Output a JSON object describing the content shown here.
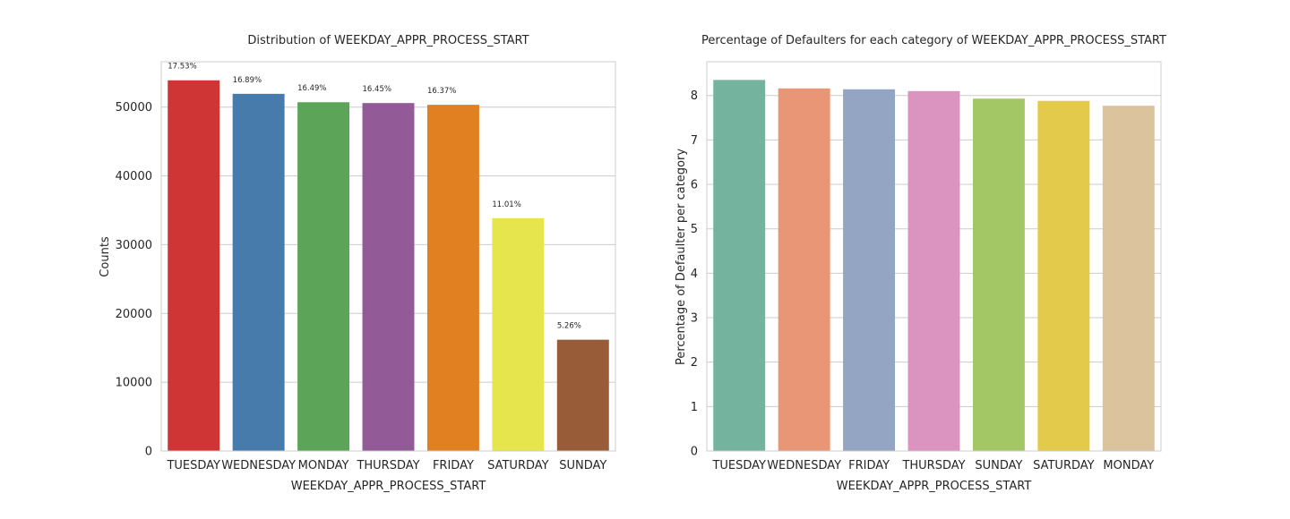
{
  "chart_data": [
    {
      "type": "bar",
      "title": "Distribution of WEEKDAY_APPR_PROCESS_START",
      "xlabel": "WEEKDAY_APPR_PROCESS_START",
      "ylabel": "Counts",
      "categories": [
        "TUESDAY",
        "WEDNESDAY",
        "MONDAY",
        "THURSDAY",
        "FRIDAY",
        "SATURDAY",
        "SUNDAY"
      ],
      "values": [
        53901,
        51934,
        50714,
        50591,
        50338,
        33852,
        16181
      ],
      "data_labels": [
        "17.53%",
        "16.89%",
        "16.49%",
        "16.45%",
        "16.37%",
        "11.01%",
        "5.26%"
      ],
      "colors": [
        "#d03536",
        "#477bab",
        "#5ca558",
        "#925b98",
        "#e08020",
        "#e6e54d",
        "#985c38"
      ],
      "ylim": [
        0,
        56600
      ],
      "yticks": [
        0,
        10000,
        20000,
        30000,
        40000,
        50000
      ],
      "grid": "horizontal"
    },
    {
      "type": "bar",
      "title": "Percentage of Defaulters for each category of WEEKDAY_APPR_PROCESS_START",
      "xlabel": "WEEKDAY_APPR_PROCESS_START",
      "ylabel": "Percentage of Defaulter per category",
      "categories": [
        "TUESDAY",
        "WEDNESDAY",
        "FRIDAY",
        "THURSDAY",
        "SUNDAY",
        "SATURDAY",
        "MONDAY"
      ],
      "values": [
        8.35,
        8.16,
        8.14,
        8.1,
        7.93,
        7.88,
        7.77
      ],
      "colors": [
        "#74b49f",
        "#e89676",
        "#94a5c3",
        "#da94bf",
        "#a3c765",
        "#e4ca4a",
        "#dac39d"
      ],
      "ylim": [
        0,
        8.76
      ],
      "yticks": [
        0,
        1,
        2,
        3,
        4,
        5,
        6,
        7,
        8
      ],
      "grid": "horizontal"
    }
  ]
}
